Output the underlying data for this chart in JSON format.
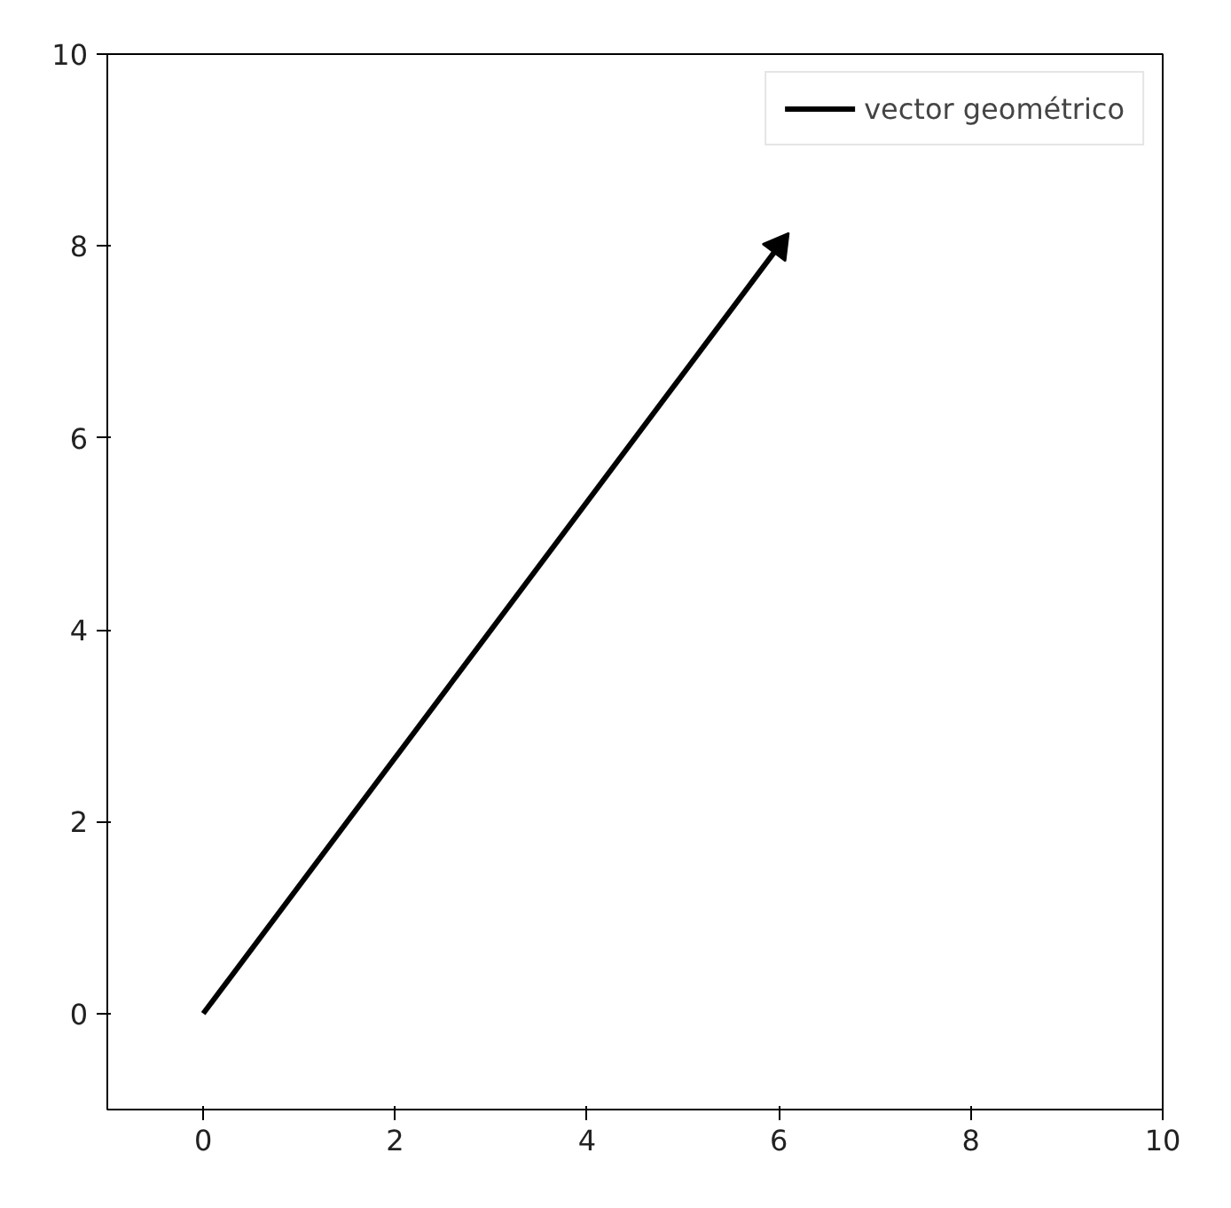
{
  "chart_data": {
    "type": "line",
    "x": [
      0,
      6
    ],
    "series": [
      {
        "name": "vector geométrico",
        "color": "#000000",
        "values": [
          0,
          8
        ]
      }
    ],
    "xlim": [
      -1,
      10
    ],
    "ylim": [
      -1,
      10
    ],
    "xticks": [
      0,
      2,
      4,
      6,
      8,
      10
    ],
    "yticks": [
      0,
      2,
      4,
      6,
      8,
      10
    ],
    "grid": false,
    "legend": "top right",
    "line_style": "solid"
  }
}
